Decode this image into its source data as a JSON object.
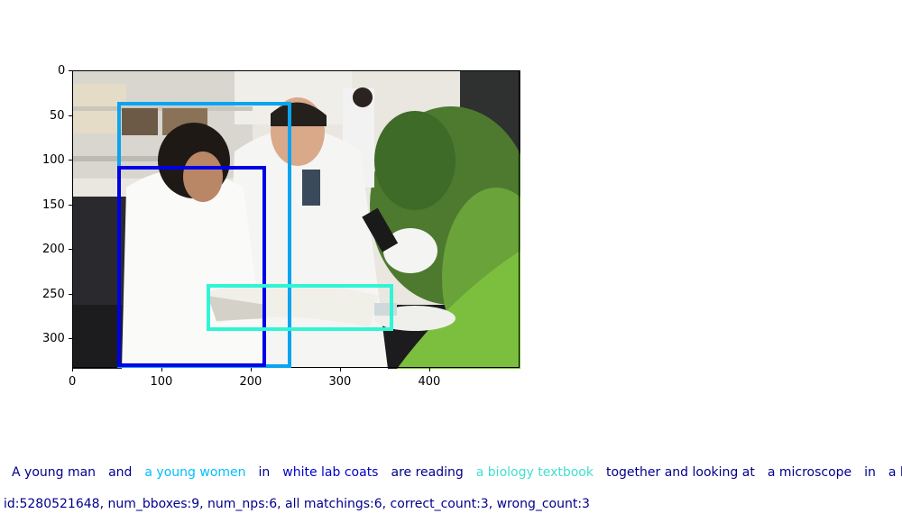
{
  "image": {
    "description_icon": "lab-photo-icon",
    "x_ticks": [
      "0",
      "100",
      "200",
      "300",
      "400"
    ],
    "y_ticks": [
      "0",
      "50",
      "100",
      "150",
      "200",
      "250",
      "300"
    ]
  },
  "boxes": [
    {
      "name": "bbox-light-blue",
      "color": "#0aa4f0"
    },
    {
      "name": "bbox-blue",
      "color": "#0000e6"
    },
    {
      "name": "bbox-cyan",
      "color": "#30f5d5"
    }
  ],
  "caption": {
    "phrases": [
      {
        "text": "A young man",
        "color": "#00008b"
      },
      {
        "text": "and",
        "color": "#00008b"
      },
      {
        "text": "a young women",
        "color": "#00bfff"
      },
      {
        "text": "in",
        "color": "#00008b"
      },
      {
        "text": "white lab coats",
        "color": "#0000cd"
      },
      {
        "text": "are reading",
        "color": "#00008b"
      },
      {
        "text": "a biology textbook",
        "color": "#40e0d0"
      },
      {
        "text": "together and looking at",
        "color": "#00008b"
      },
      {
        "text": "a microscope",
        "color": "#00008b"
      },
      {
        "text": "in",
        "color": "#00008b"
      },
      {
        "text": "a lab",
        "color": "#00008b"
      }
    ]
  },
  "stats": {
    "text": "id:5280521648, num_bboxes:9, num_nps:6, all matchings:6, correct_count:3, wrong_count:3"
  }
}
